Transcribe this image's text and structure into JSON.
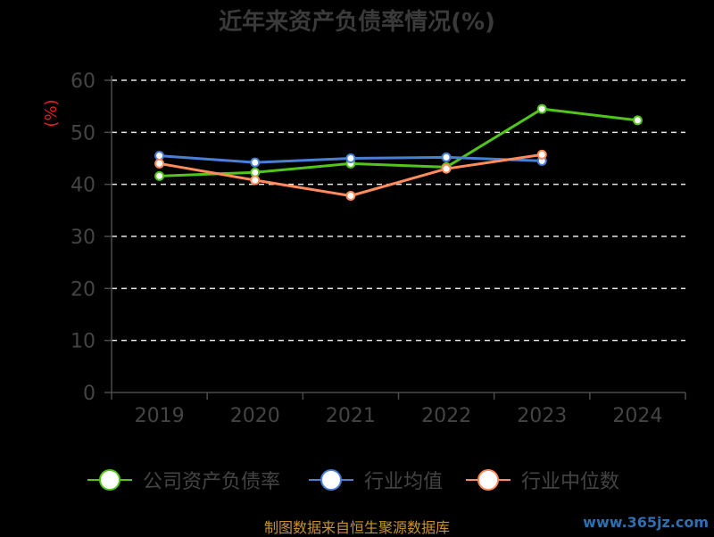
{
  "chart_data": {
    "type": "line",
    "title": "近年来资产负债率情况(%)",
    "ylabel": "(%)",
    "xlabel": "",
    "categories": [
      "2019",
      "2020",
      "2021",
      "2022",
      "2023",
      "2024"
    ],
    "ylim": [
      0,
      60
    ],
    "yticks": [
      0,
      10,
      20,
      30,
      40,
      50,
      60
    ],
    "grid": true,
    "legend_position": "bottom",
    "series": [
      {
        "name": "公司资产负债率",
        "color": "#52c41a",
        "values": [
          41.6,
          42.3,
          44.0,
          43.3,
          54.5,
          52.3
        ]
      },
      {
        "name": "行业均值",
        "color": "#4a7fd6",
        "values": [
          45.5,
          44.2,
          45.0,
          45.2,
          44.5,
          null
        ]
      },
      {
        "name": "行业中位数",
        "color": "#ff8c5a",
        "values": [
          44.0,
          40.8,
          37.8,
          43.0,
          45.7,
          null
        ]
      }
    ]
  },
  "footer": {
    "source": "制图数据来自恒生聚源数据库",
    "watermark": "www.365jz.com"
  }
}
